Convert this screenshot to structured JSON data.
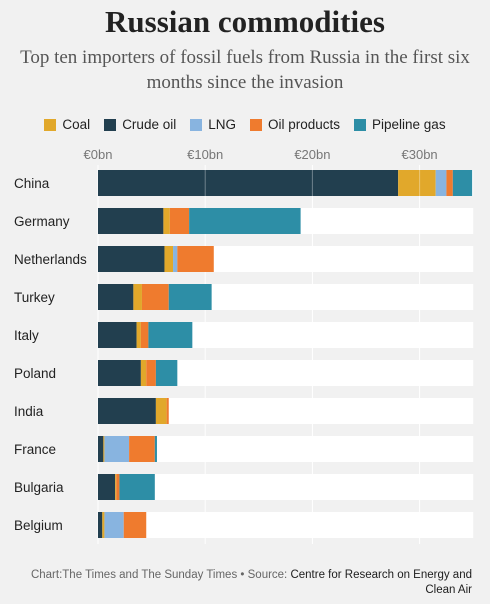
{
  "header": {
    "title": "Russian commodities",
    "subtitle": "Top ten importers of fossil fuels from Russia in the first six months since the invasion"
  },
  "footer": {
    "chart_credit": "Chart:The Times and The Sunday Times",
    "separator": " • ",
    "source_label": "Source: ",
    "source_value": "Centre for Research on Energy and Clean Air"
  },
  "colors": {
    "background": "#f1f1f1",
    "grid": "#ffffff",
    "Coal": "#e1a82b",
    "Crude oil": "#223f4f",
    "LNG": "#88b4e0",
    "Oil products": "#ef7b2e",
    "Pipeline gas": "#2d8ea6"
  },
  "chart_data": {
    "type": "bar",
    "orientation": "horizontal",
    "stacked": true,
    "title": "Russian commodities",
    "subtitle": "Top ten importers of fossil fuels from Russia in the first six months since the invasion",
    "legend_position": "top",
    "grid": true,
    "xlim": [
      0,
      35
    ],
    "x_ticks": [
      {
        "value": 0,
        "label": "€0bn"
      },
      {
        "value": 10,
        "label": "€10bn"
      },
      {
        "value": 20,
        "label": "€20bn"
      },
      {
        "value": 30,
        "label": "€30bn"
      }
    ],
    "categories": [
      "China",
      "Germany",
      "Netherlands",
      "Turkey",
      "Italy",
      "Poland",
      "India",
      "France",
      "Bulgaria",
      "Belgium"
    ],
    "series": [
      {
        "name": "Crude oil",
        "values": [
          28.0,
          6.1,
          6.2,
          3.3,
          3.6,
          4.0,
          5.4,
          0.5,
          1.6,
          0.4
        ]
      },
      {
        "name": "Coal",
        "values": [
          3.5,
          0.6,
          0.8,
          0.8,
          0.4,
          0.5,
          1.0,
          0.1,
          0.1,
          0.2
        ]
      },
      {
        "name": "LNG",
        "values": [
          1.0,
          0.0,
          0.4,
          0.0,
          0.0,
          0.0,
          0.0,
          2.3,
          0.0,
          1.8
        ]
      },
      {
        "name": "Oil products",
        "values": [
          0.6,
          1.8,
          3.4,
          2.5,
          0.7,
          0.9,
          0.2,
          2.4,
          0.3,
          2.1
        ]
      },
      {
        "name": "Pipeline gas",
        "values": [
          1.8,
          10.4,
          0.0,
          4.0,
          4.1,
          2.0,
          0.0,
          0.2,
          3.3,
          0.0
        ]
      }
    ],
    "legend_order": [
      "Coal",
      "Crude oil",
      "LNG",
      "Oil products",
      "Pipeline gas"
    ]
  }
}
